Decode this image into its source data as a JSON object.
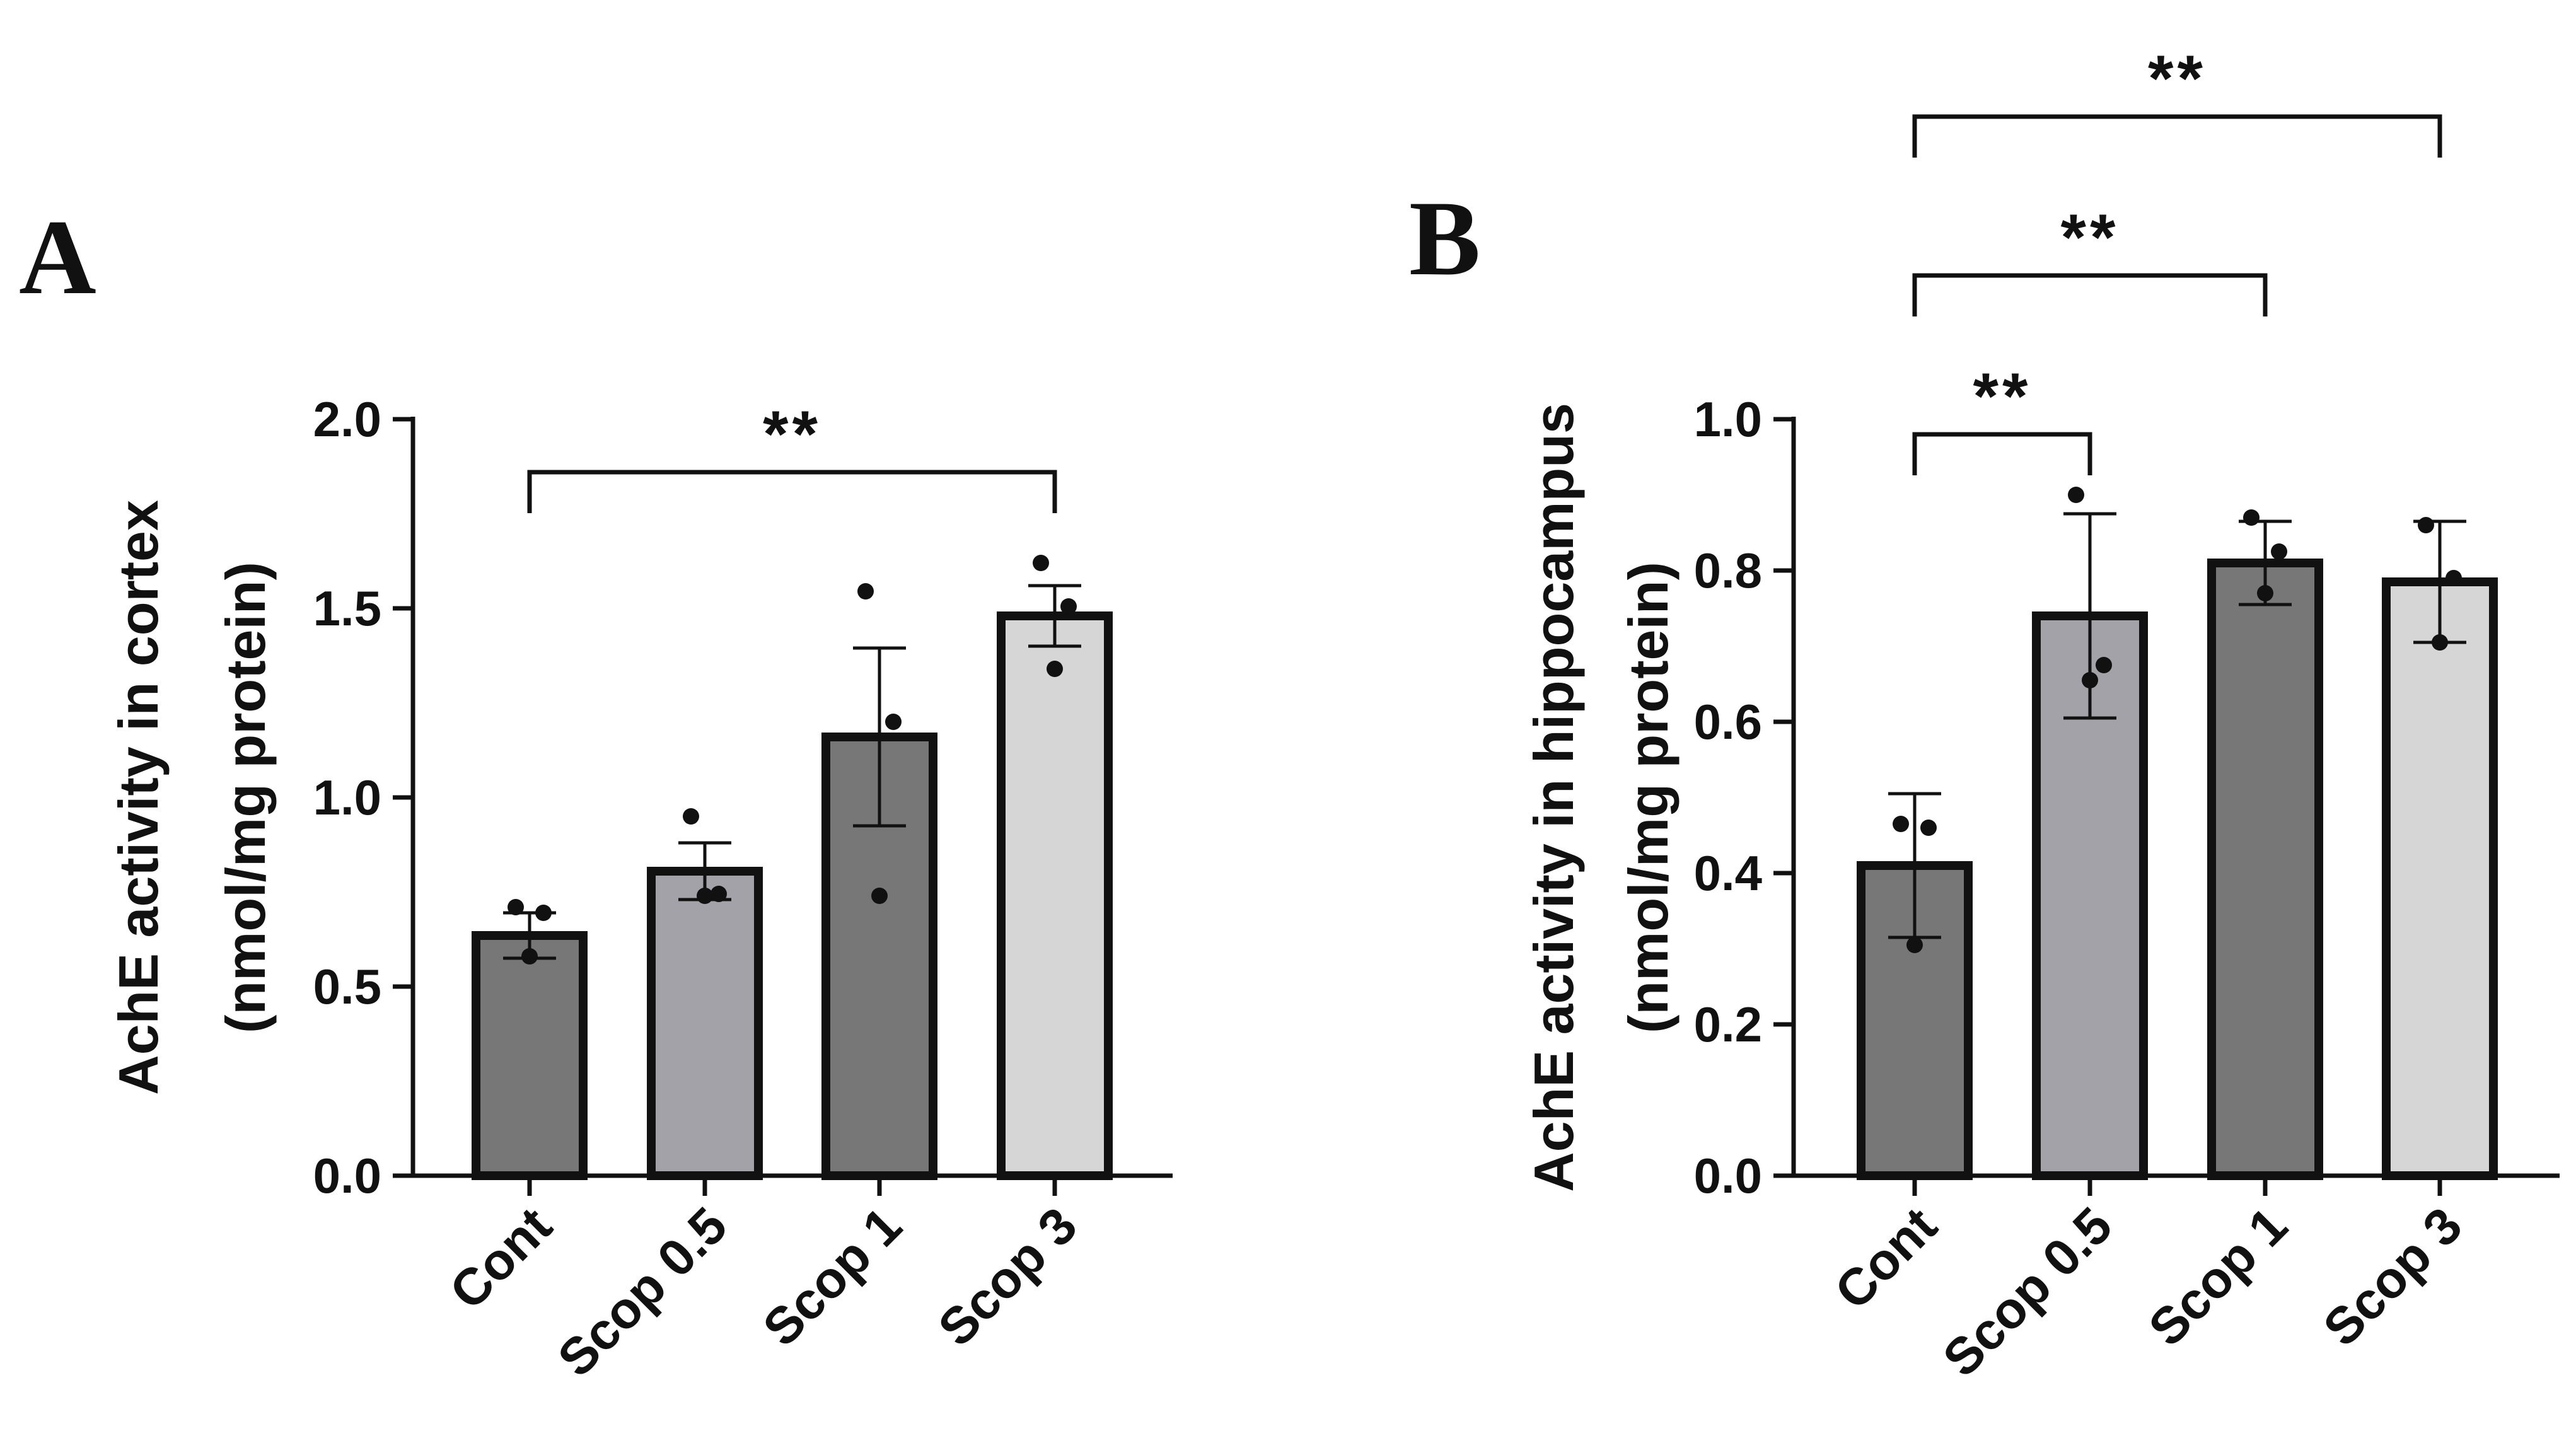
{
  "chart_data": [
    {
      "panel": "A",
      "type": "bar",
      "categories": [
        "Cont",
        "Scop 0.5",
        "Scop 1",
        "Scop 3"
      ],
      "values": [
        0.635,
        0.805,
        1.16,
        1.48
      ],
      "error": [
        0.06,
        0.075,
        0.235,
        0.08
      ],
      "points": [
        [
          0.71,
          0.695,
          0.58
        ],
        [
          0.95,
          0.745,
          0.74
        ],
        [
          1.545,
          1.2,
          0.74
        ],
        [
          1.62,
          1.505,
          1.34
        ]
      ],
      "colors": [
        "#777777",
        "#a2a2a8",
        "#777777",
        "#d6d6d6"
      ],
      "ylabel_line1": "AchE activity in cortex",
      "ylabel_line2": "(nmol/mg protein)",
      "ylim": [
        0,
        2.0
      ],
      "yticks": [
        "0.0",
        "0.5",
        "1.0",
        "1.5",
        "2.0"
      ],
      "ytick_values": [
        0,
        0.5,
        1.0,
        1.5,
        2.0
      ],
      "significance": [
        {
          "from": 0,
          "to": 3,
          "label": "**",
          "level": 1.86
        }
      ]
    },
    {
      "panel": "B",
      "type": "bar",
      "categories": [
        "Cont",
        "Scop 0.5",
        "Scop 1",
        "Scop 3"
      ],
      "values": [
        0.41,
        0.74,
        0.81,
        0.785
      ],
      "error": [
        0.095,
        0.135,
        0.055,
        0.08
      ],
      "points": [
        [
          0.465,
          0.46,
          0.305
        ],
        [
          0.9,
          0.675,
          0.655
        ],
        [
          0.87,
          0.825,
          0.77
        ],
        [
          0.86,
          0.79,
          0.705
        ]
      ],
      "colors": [
        "#777777",
        "#a2a2a8",
        "#777777",
        "#d6d6d6"
      ],
      "ylabel_line1": "AchE activity in hippocampus",
      "ylabel_line2": "(nmol/mg protein)",
      "ylim": [
        0,
        1.0
      ],
      "yticks": [
        "0.0",
        "0.2",
        "0.4",
        "0.6",
        "0.8",
        "1.0"
      ],
      "ytick_values": [
        0,
        0.2,
        0.4,
        0.6,
        0.8,
        1.0
      ],
      "significance": [
        {
          "from": 0,
          "to": 1,
          "label": "**",
          "level": 0.98
        },
        {
          "from": 0,
          "to": 2,
          "label": "**",
          "level": 1.19
        },
        {
          "from": 0,
          "to": 3,
          "label": "**",
          "level": 1.4
        }
      ]
    }
  ]
}
